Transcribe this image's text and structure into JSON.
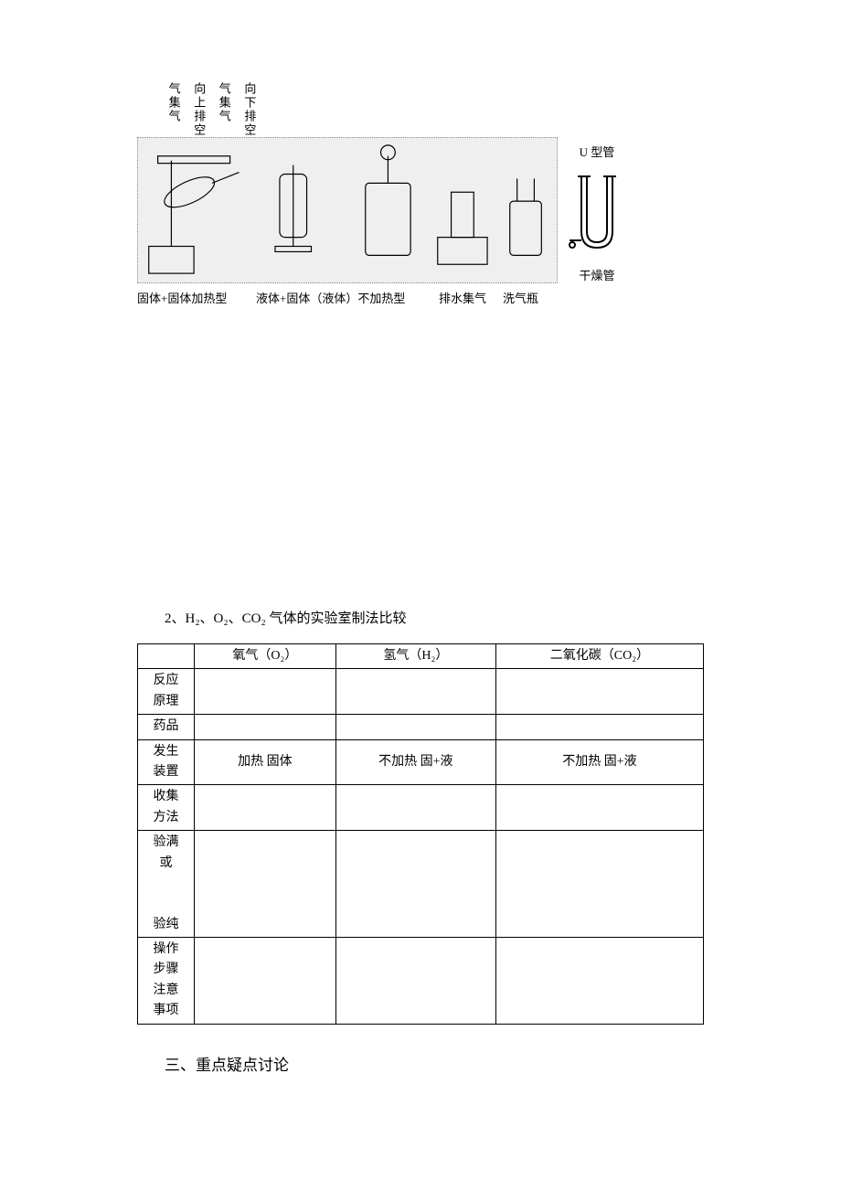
{
  "apparatus": {
    "vertical_labels": [
      "气集气",
      "向上排空",
      "气集气",
      "向下排空"
    ],
    "captions": {
      "c1": "固体+固体加热型",
      "c2": "液体+固体（液体）不加热型",
      "c3": "排水集气",
      "c4": "洗气瓶"
    },
    "side": {
      "u_tube": "U 型管",
      "dry_tube": "干燥管"
    }
  },
  "section2_title": "2、H₂、O₂、CO₂ 气体的实验室制法比较",
  "table": {
    "headers": {
      "blank": "",
      "o2": "氧气（O₂）",
      "h2": "氢气（H₂）",
      "co2": "二氧化碳（CO₂）"
    },
    "rows": [
      {
        "label": "反应\n原理",
        "o2": "",
        "h2": "",
        "co2": ""
      },
      {
        "label": "药品",
        "o2": "",
        "h2": "",
        "co2": ""
      },
      {
        "label": "发生\n装置",
        "o2": "加热 固体",
        "h2": "不加热 固+液",
        "co2": "不加热 固+液"
      },
      {
        "label": "收集\n方法",
        "o2": "",
        "h2": "",
        "co2": ""
      },
      {
        "label": "验满\n或\n\n验纯",
        "o2": "",
        "h2": "",
        "co2": ""
      },
      {
        "label": "操作\n步骤\n注意\n事项",
        "o2": "",
        "h2": "",
        "co2": ""
      }
    ]
  },
  "final_heading": "三、重点疑点讨论",
  "colors": {
    "text": "#000000",
    "bg": "#ffffff",
    "img_bg": "#f0f0f0",
    "border": "#000000"
  }
}
